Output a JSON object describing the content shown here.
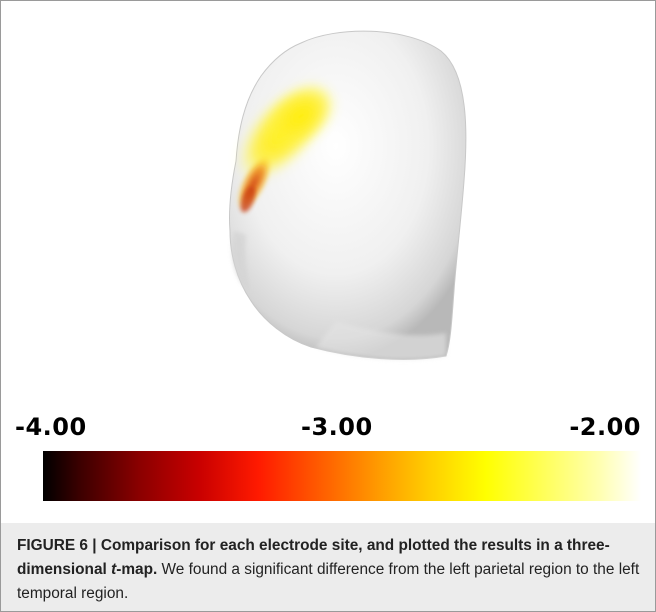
{
  "figure": {
    "label": "FIGURE 6 |",
    "title_part1": "Comparison for each electrode site, and plotted the results in a three-dimensional ",
    "title_italic": "t",
    "title_part2": "-map.",
    "description": "We found a significant difference from the left parietal region to the left temporal region."
  },
  "colorbar": {
    "min_label": "-4.00",
    "mid_label": "-3.00",
    "max_label": "-2.00",
    "colormap": "hot"
  },
  "colors": {
    "caption_background": "#ececec",
    "border": "#9a9a9a",
    "head": "#f2f2f2",
    "activation_hot": "#e06010",
    "activation_warm": "#ffee00"
  }
}
